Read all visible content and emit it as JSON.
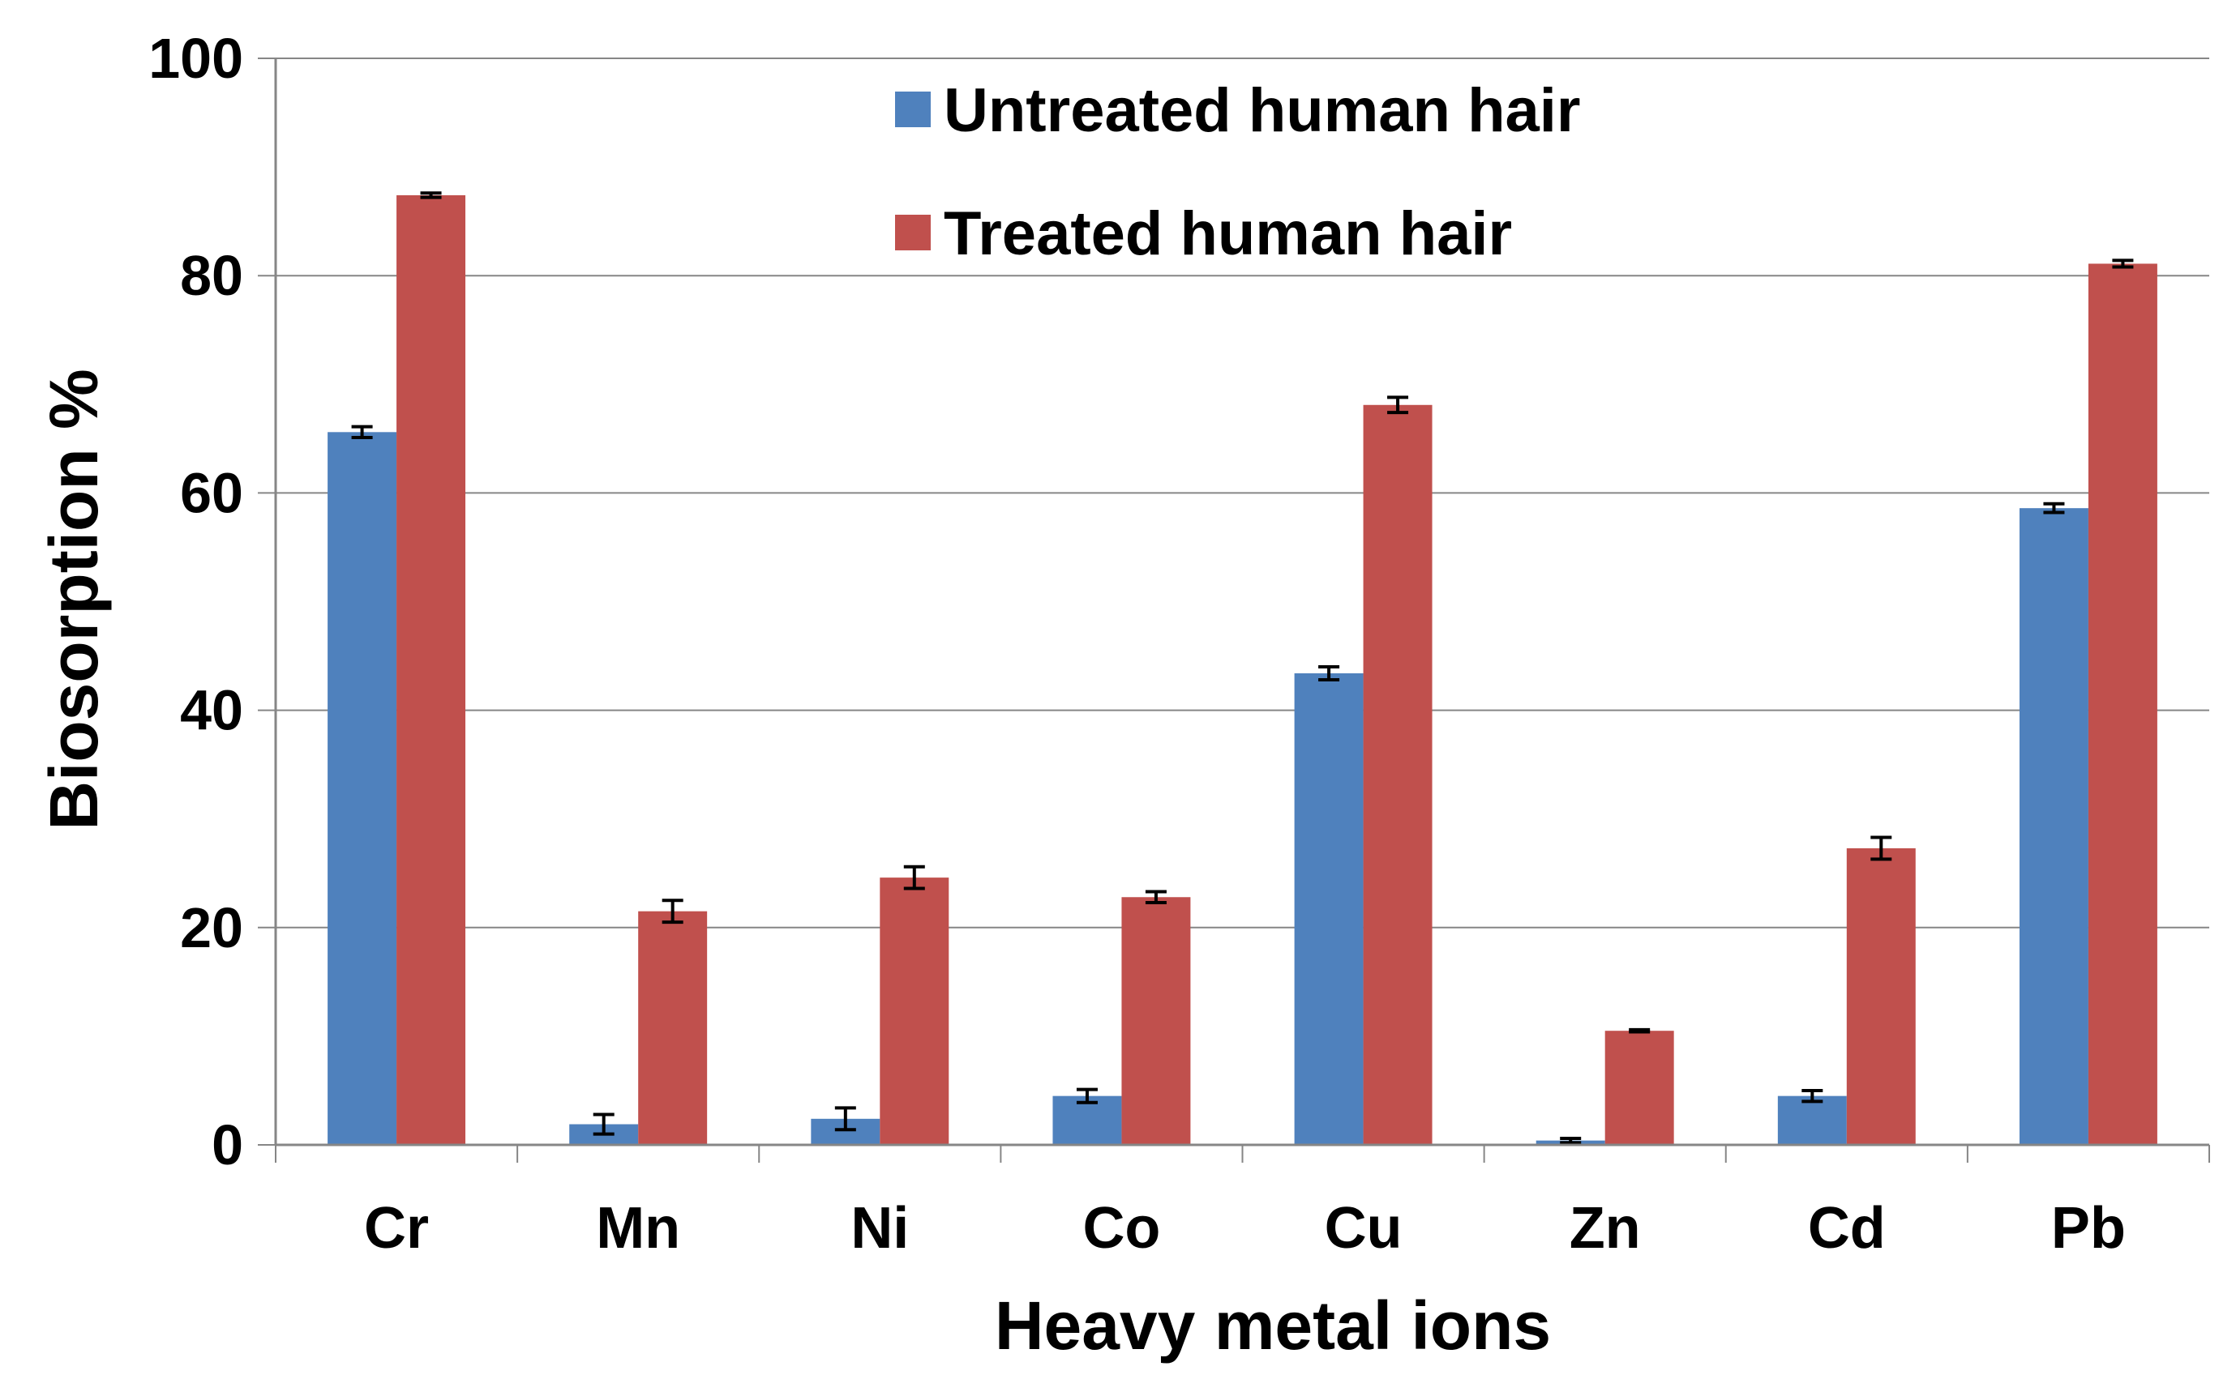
{
  "chart_data": {
    "type": "bar",
    "title": "",
    "xlabel": "Heavy metal ions",
    "ylabel": "Biosorption %",
    "ylim": [
      0,
      100
    ],
    "yticks": [
      0,
      20,
      40,
      60,
      80,
      100
    ],
    "grid": true,
    "legend_position": "top-center",
    "categories": [
      "Cr",
      "Mn",
      "Ni",
      "Co",
      "Cu",
      "Zn",
      "Cd",
      "Pb"
    ],
    "series": [
      {
        "name": "Untreated human hair",
        "color": "#4F81BD",
        "values": [
          65.6,
          1.9,
          2.4,
          4.5,
          43.4,
          0.4,
          4.5,
          58.6
        ],
        "errors": [
          0.5,
          0.9,
          1.0,
          0.6,
          0.6,
          0.2,
          0.5,
          0.4
        ]
      },
      {
        "name": "Treated human hair",
        "color": "#C0504D",
        "values": [
          87.4,
          21.5,
          24.6,
          22.8,
          68.1,
          10.5,
          27.3,
          81.1
        ],
        "errors": [
          0.2,
          1.0,
          1.0,
          0.5,
          0.7,
          0.1,
          1.0,
          0.3
        ]
      }
    ]
  }
}
